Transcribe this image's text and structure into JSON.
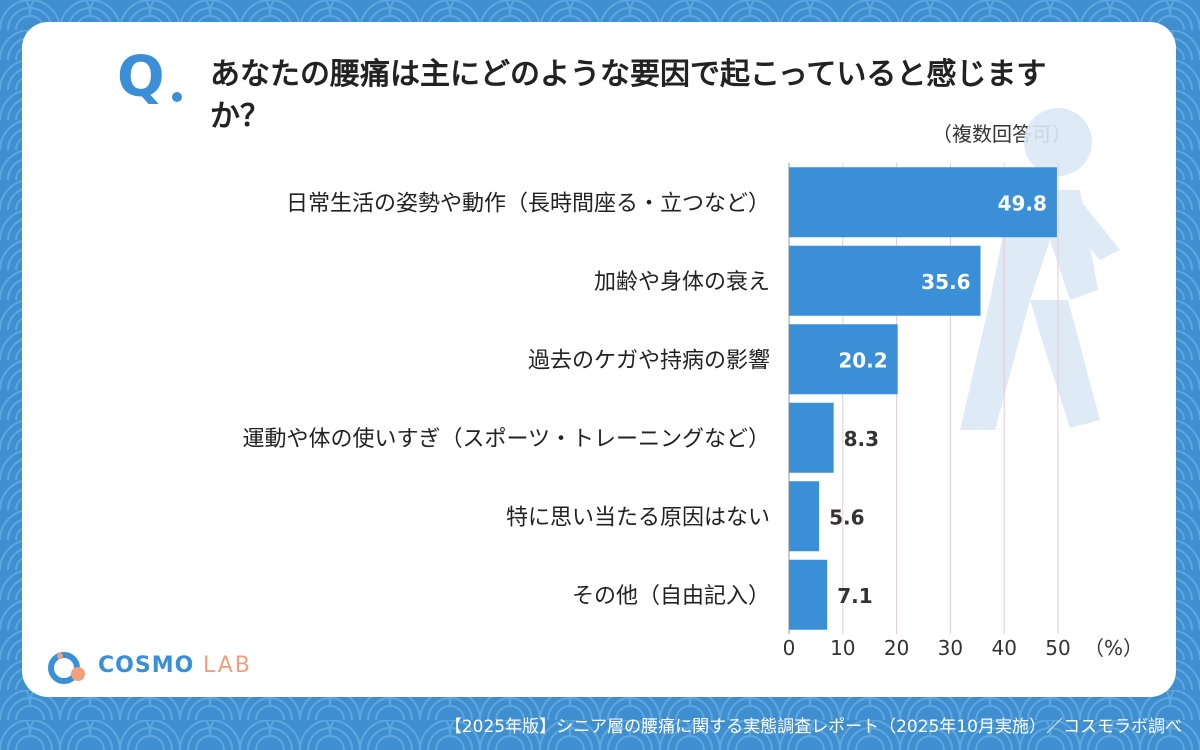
{
  "question": {
    "mark": "Q",
    "text": "あなたの腰痛は主にどのような要因で起こっていると感じますか？",
    "note": "（複数回答可）"
  },
  "chart_data": {
    "type": "bar",
    "orientation": "horizontal",
    "categories": [
      "日常生活の姿勢や動作（長時間座る・立つなど）",
      "加齢や身体の衰え",
      "過去のケガや持病の影響",
      "運動や体の使いすぎ（スポーツ・トレーニングなど）",
      "特に思い当たる原因はない",
      "その他（自由記入）"
    ],
    "values": [
      49.8,
      35.6,
      20.2,
      8.3,
      5.6,
      7.1
    ],
    "value_labels": [
      "49.8",
      "35.6",
      "20.2",
      "8.3",
      "5.6",
      "7.1"
    ],
    "xlim": [
      0,
      50
    ],
    "xticks": [
      "0",
      "10",
      "20",
      "30",
      "40",
      "50"
    ],
    "unit_label": "（%）",
    "grid": true,
    "bar_color": "#3b8fd6"
  },
  "logo": {
    "name": "COSMO",
    "suffix": "LAB"
  },
  "footer": "【2025年版】シニア層の腰痛に関する実態調査レポート（2025年10月実施）／コスモラボ調べ"
}
